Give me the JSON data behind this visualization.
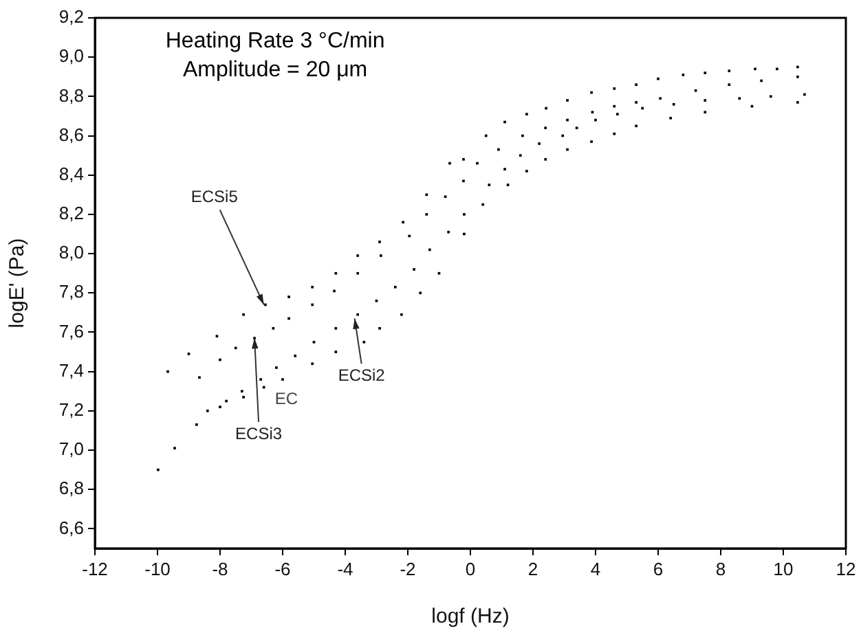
{
  "chart_data": {
    "type": "scatter",
    "title": "Heating Rate 3 °C/min",
    "subtitle": "Amplitude = 20 μm",
    "xlabel": "logf (Hz)",
    "ylabel": "logE' (Pa)",
    "xlim": [
      -12,
      12
    ],
    "xticks": [
      -12,
      -10,
      -8,
      -6,
      -4,
      -2,
      0,
      2,
      4,
      6,
      8,
      10,
      12
    ],
    "ylim": [
      6.5,
      9.2
    ],
    "yticks": [
      {
        "value": 6.6,
        "label": "6,6"
      },
      {
        "value": 6.8,
        "label": "6,8"
      },
      {
        "value": 7.0,
        "label": "7,0"
      },
      {
        "value": 7.2,
        "label": "7,2"
      },
      {
        "value": 7.4,
        "label": "7,4"
      },
      {
        "value": 7.6,
        "label": "7,6"
      },
      {
        "value": 7.8,
        "label": "7,8"
      },
      {
        "value": 8.0,
        "label": "8,0"
      },
      {
        "value": 8.2,
        "label": "8,2"
      },
      {
        "value": 8.4,
        "label": "8,4"
      },
      {
        "value": 8.6,
        "label": "8,6"
      },
      {
        "value": 8.8,
        "label": "8,8"
      },
      {
        "value": 9.0,
        "label": "9,0"
      },
      {
        "value": 9.2,
        "label": "9,2"
      }
    ],
    "marker": "square",
    "grid": false,
    "legend": false,
    "series": [
      {
        "color": "#000000",
        "x": [
          -9.67,
          -9.0,
          -8.1,
          -7.25,
          -6.55,
          -5.8,
          -5.05,
          -4.3,
          -3.6,
          -2.9,
          -2.15,
          -1.4,
          -0.66,
          -0.22,
          0.5,
          1.1,
          1.8,
          2.42,
          3.1,
          3.87,
          4.6,
          5.3,
          6.0,
          6.8,
          7.5,
          8.27,
          9.1,
          9.8,
          10.46
        ],
        "values": [
          7.4,
          7.49,
          7.58,
          7.69,
          7.74,
          7.78,
          7.83,
          7.9,
          7.99,
          8.06,
          8.16,
          8.3,
          8.46,
          8.48,
          8.6,
          8.67,
          8.71,
          8.74,
          8.78,
          8.82,
          8.84,
          8.86,
          8.89,
          8.91,
          8.92,
          8.93,
          8.94,
          8.94,
          8.95
        ]
      },
      {
        "color": "#000000",
        "x": [
          -8.66,
          -8.0,
          -7.5,
          -6.9,
          -6.3,
          -5.8,
          -5.05,
          -4.35,
          -3.6,
          -2.86,
          -1.95,
          -1.4,
          -0.8,
          -0.22,
          0.22,
          0.9,
          1.67,
          2.4,
          3.1,
          3.9,
          4.6,
          5.3,
          6.07,
          7.2,
          8.27,
          9.3,
          10.46
        ],
        "values": [
          7.37,
          7.46,
          7.52,
          7.57,
          7.62,
          7.67,
          7.74,
          7.81,
          7.9,
          7.99,
          8.09,
          8.2,
          8.29,
          8.37,
          8.46,
          8.53,
          8.6,
          8.64,
          8.68,
          8.72,
          8.75,
          8.77,
          8.79,
          8.83,
          8.86,
          8.88,
          8.9
        ]
      },
      {
        "color": "#000000",
        "x": [
          -9.98,
          -9.45,
          -8.75,
          -8.0,
          -7.25,
          -6.6,
          -6.0,
          -5.05,
          -4.3,
          -3.4,
          -2.9,
          -2.2,
          -1.6,
          -1.0,
          -0.2,
          0.4,
          1.2,
          1.8,
          2.4,
          3.1,
          3.87,
          4.6,
          5.3,
          6.4,
          7.5,
          9.0,
          10.46
        ],
        "values": [
          6.9,
          7.01,
          7.13,
          7.22,
          7.27,
          7.32,
          7.36,
          7.44,
          7.5,
          7.55,
          7.62,
          7.69,
          7.8,
          7.9,
          8.1,
          8.25,
          8.35,
          8.42,
          8.48,
          8.53,
          8.57,
          8.61,
          8.65,
          8.69,
          8.72,
          8.75,
          8.77
        ]
      },
      {
        "color": "#000000",
        "x": [
          -8.4,
          -7.8,
          -7.3,
          -6.7,
          -6.2,
          -5.6,
          -5.0,
          -4.3,
          -3.6,
          -3.0,
          -2.4,
          -1.8,
          -1.3,
          -0.7,
          -0.2,
          0.6,
          1.1,
          1.6,
          2.2,
          2.95,
          3.4,
          4.0,
          4.7,
          5.5,
          6.5,
          7.5,
          8.6,
          9.6,
          10.68
        ],
        "values": [
          7.2,
          7.25,
          7.3,
          7.36,
          7.42,
          7.48,
          7.55,
          7.62,
          7.69,
          7.76,
          7.83,
          7.92,
          8.02,
          8.11,
          8.2,
          8.35,
          8.43,
          8.5,
          8.56,
          8.6,
          8.64,
          8.68,
          8.71,
          8.74,
          8.76,
          8.78,
          8.79,
          8.8,
          8.81
        ]
      }
    ],
    "annotations": [
      {
        "text": "ECSi5",
        "x": -6.6,
        "y": 7.74
      },
      {
        "text": "ECSi3",
        "x": -6.9,
        "y": 7.57
      },
      "EC",
      {
        "text": "ECSi2",
        "x": -3.7,
        "y": 7.67
      }
    ]
  }
}
